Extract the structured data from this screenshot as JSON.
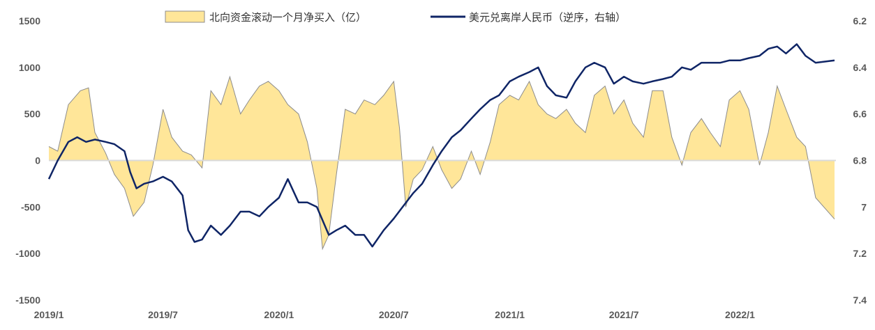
{
  "chart_data": {
    "type": "line",
    "legend_position": "top-center",
    "grid": false,
    "x_ticks": [
      "2019/1",
      "2019/7",
      "2020/1",
      "2020/7",
      "2021/1",
      "2021/7",
      "2022/1"
    ],
    "y_left": {
      "ylim": [
        -1500,
        1500
      ],
      "ticks": [
        "1500",
        "1000",
        "500",
        "0",
        "-500",
        "-1000",
        "-1500"
      ]
    },
    "y_right": {
      "ylim": [
        6.2,
        7.4
      ],
      "inverted": true,
      "ticks": [
        "6.2",
        "6.4",
        "6.6",
        "6.8",
        "7",
        "7.2",
        "7.4"
      ]
    },
    "x_range": [
      "2019-01-01",
      "2022-05-31"
    ],
    "series": [
      {
        "name": "北向资金滚动一个月净买入（亿）",
        "type": "area",
        "axis": "left",
        "color": "#FFE699",
        "stroke": "#8C8C8C",
        "x": [
          "2019-01-01",
          "2019-01-15",
          "2019-02-01",
          "2019-02-20",
          "2019-03-05",
          "2019-03-15",
          "2019-04-01",
          "2019-04-15",
          "2019-05-01",
          "2019-05-15",
          "2019-06-01",
          "2019-06-15",
          "2019-07-01",
          "2019-07-15",
          "2019-08-01",
          "2019-08-15",
          "2019-09-01",
          "2019-09-15",
          "2019-10-01",
          "2019-10-15",
          "2019-11-01",
          "2019-11-15",
          "2019-12-01",
          "2019-12-15",
          "2020-01-01",
          "2020-01-15",
          "2020-02-01",
          "2020-02-15",
          "2020-03-01",
          "2020-03-10",
          "2020-03-20",
          "2020-04-01",
          "2020-04-15",
          "2020-05-01",
          "2020-05-15",
          "2020-06-01",
          "2020-06-15",
          "2020-07-01",
          "2020-07-10",
          "2020-07-20",
          "2020-08-01",
          "2020-08-15",
          "2020-09-01",
          "2020-09-15",
          "2020-10-01",
          "2020-10-15",
          "2020-11-01",
          "2020-11-15",
          "2020-12-01",
          "2020-12-15",
          "2021-01-01",
          "2021-01-15",
          "2021-02-01",
          "2021-02-15",
          "2021-03-01",
          "2021-03-15",
          "2021-04-01",
          "2021-04-15",
          "2021-05-01",
          "2021-05-15",
          "2021-06-01",
          "2021-06-15",
          "2021-07-01",
          "2021-07-15",
          "2021-08-01",
          "2021-08-15",
          "2021-09-01",
          "2021-09-15",
          "2021-10-01",
          "2021-10-15",
          "2021-11-01",
          "2021-11-15",
          "2021-12-01",
          "2021-12-15",
          "2022-01-01",
          "2022-01-15",
          "2022-02-01",
          "2022-02-15",
          "2022-03-01",
          "2022-03-15",
          "2022-04-01",
          "2022-04-15",
          "2022-05-01",
          "2022-05-31"
        ],
        "values": [
          150,
          100,
          600,
          750,
          780,
          300,
          80,
          -150,
          -300,
          -600,
          -450,
          -50,
          550,
          250,
          100,
          60,
          -80,
          750,
          600,
          900,
          500,
          650,
          800,
          850,
          750,
          600,
          500,
          200,
          -300,
          -950,
          -800,
          -150,
          550,
          500,
          650,
          600,
          700,
          850,
          350,
          -500,
          -200,
          -100,
          150,
          -100,
          -300,
          -200,
          100,
          -150,
          200,
          600,
          700,
          650,
          850,
          600,
          500,
          450,
          550,
          400,
          300,
          700,
          800,
          500,
          650,
          400,
          250,
          750,
          750,
          250,
          -50,
          300,
          450,
          300,
          150,
          650,
          750,
          550,
          -50,
          300,
          800,
          550,
          250,
          150,
          -400,
          -630
        ]
      },
      {
        "name": "美元兑离岸人民币（逆序，右轴）",
        "type": "line",
        "axis": "right",
        "color": "#0F2566",
        "x": [
          "2019-01-01",
          "2019-01-15",
          "2019-02-01",
          "2019-02-15",
          "2019-03-01",
          "2019-03-15",
          "2019-04-01",
          "2019-04-15",
          "2019-05-01",
          "2019-05-10",
          "2019-05-20",
          "2019-06-01",
          "2019-06-15",
          "2019-07-01",
          "2019-07-15",
          "2019-08-01",
          "2019-08-10",
          "2019-08-20",
          "2019-09-01",
          "2019-09-15",
          "2019-10-01",
          "2019-10-15",
          "2019-11-01",
          "2019-11-15",
          "2019-12-01",
          "2019-12-15",
          "2020-01-01",
          "2020-01-15",
          "2020-02-01",
          "2020-02-15",
          "2020-03-01",
          "2020-03-20",
          "2020-04-01",
          "2020-04-15",
          "2020-05-01",
          "2020-05-15",
          "2020-05-28",
          "2020-06-15",
          "2020-07-01",
          "2020-07-15",
          "2020-08-01",
          "2020-08-15",
          "2020-09-01",
          "2020-09-15",
          "2020-10-01",
          "2020-10-15",
          "2020-11-01",
          "2020-11-15",
          "2020-12-01",
          "2020-12-15",
          "2021-01-01",
          "2021-01-15",
          "2021-02-01",
          "2021-02-15",
          "2021-03-01",
          "2021-03-15",
          "2021-04-01",
          "2021-04-15",
          "2021-05-01",
          "2021-05-15",
          "2021-06-01",
          "2021-06-15",
          "2021-07-01",
          "2021-07-15",
          "2021-08-01",
          "2021-08-15",
          "2021-09-01",
          "2021-09-15",
          "2021-10-01",
          "2021-10-15",
          "2021-11-01",
          "2021-11-15",
          "2021-12-01",
          "2021-12-15",
          "2022-01-01",
          "2022-01-15",
          "2022-02-01",
          "2022-02-15",
          "2022-03-01",
          "2022-03-15",
          "2022-04-01",
          "2022-04-15",
          "2022-05-01",
          "2022-05-31"
        ],
        "values": [
          6.88,
          6.8,
          6.72,
          6.7,
          6.72,
          6.71,
          6.72,
          6.73,
          6.76,
          6.85,
          6.92,
          6.9,
          6.89,
          6.87,
          6.89,
          6.95,
          7.1,
          7.15,
          7.14,
          7.08,
          7.12,
          7.08,
          7.02,
          7.02,
          7.04,
          7.0,
          6.96,
          6.88,
          6.98,
          6.98,
          7.0,
          7.12,
          7.1,
          7.08,
          7.12,
          7.12,
          7.17,
          7.1,
          7.05,
          7.0,
          6.94,
          6.9,
          6.82,
          6.76,
          6.7,
          6.67,
          6.62,
          6.58,
          6.54,
          6.52,
          6.46,
          6.44,
          6.42,
          6.4,
          6.48,
          6.52,
          6.53,
          6.46,
          6.4,
          6.38,
          6.4,
          6.47,
          6.44,
          6.46,
          6.47,
          6.46,
          6.45,
          6.44,
          6.4,
          6.41,
          6.38,
          6.38,
          6.38,
          6.37,
          6.37,
          6.36,
          6.35,
          6.32,
          6.31,
          6.34,
          6.3,
          6.35,
          6.38,
          6.37
        ]
      }
    ]
  }
}
